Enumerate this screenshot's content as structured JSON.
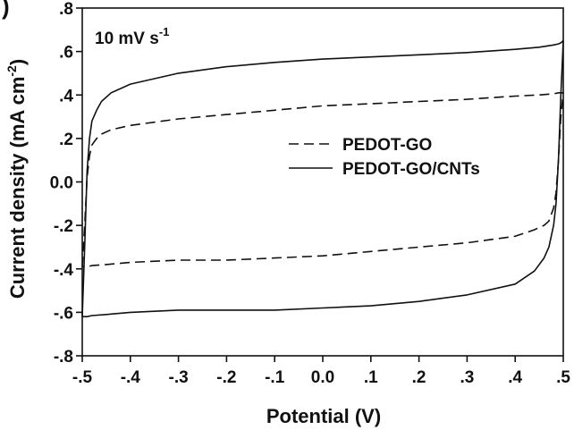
{
  "chart_data": {
    "type": "line",
    "panel_label": ")",
    "annotation": "10 mV s-1",
    "annotation_parts": {
      "base": "10 mV s",
      "sup": "-1"
    },
    "xlabel": "Potential (V)",
    "ylabel": "Current density (mA cm-2)",
    "ylabel_parts": {
      "base": "Current density (mA cm",
      "sup": "-2",
      "tail": ")"
    },
    "xlim": [
      -0.5,
      0.5
    ],
    "ylim": [
      -0.8,
      0.8
    ],
    "x_ticks": [
      -0.5,
      -0.4,
      -0.3,
      -0.2,
      -0.1,
      0.0,
      0.1,
      0.2,
      0.3,
      0.4,
      0.5
    ],
    "x_tick_labels": [
      "-.5",
      "-.4",
      "-.3",
      "-.2",
      "-.1",
      "0.0",
      ".1",
      ".2",
      ".3",
      ".4",
      ".5"
    ],
    "y_ticks": [
      -0.8,
      -0.6,
      -0.4,
      -0.2,
      0.0,
      0.2,
      0.4,
      0.6,
      0.8
    ],
    "y_tick_labels": [
      "-.8",
      "-.6",
      "-.4",
      "-.2",
      "0.0",
      ".2",
      ".4",
      ".6",
      ".8"
    ],
    "grid": false,
    "legend_position": "center-right",
    "series": [
      {
        "name": "PEDOT-GO",
        "style": "dashed",
        "color": "#111111",
        "x": [
          -0.5,
          -0.495,
          -0.49,
          -0.485,
          -0.48,
          -0.47,
          -0.46,
          -0.44,
          -0.4,
          -0.3,
          -0.2,
          -0.1,
          0.0,
          0.1,
          0.2,
          0.3,
          0.4,
          0.45,
          0.48,
          0.49,
          0.495,
          0.5,
          0.495,
          0.49,
          0.485,
          0.48,
          0.47,
          0.46,
          0.44,
          0.4,
          0.3,
          0.2,
          0.1,
          0.0,
          -0.1,
          -0.2,
          -0.3,
          -0.4,
          -0.45,
          -0.48,
          -0.49,
          -0.495,
          -0.5
        ],
        "y": [
          -0.39,
          -0.2,
          0.02,
          0.12,
          0.17,
          0.2,
          0.22,
          0.24,
          0.26,
          0.29,
          0.31,
          0.33,
          0.35,
          0.36,
          0.37,
          0.38,
          0.395,
          0.4,
          0.405,
          0.41,
          0.41,
          0.41,
          0.3,
          0.1,
          -0.05,
          -0.12,
          -0.18,
          -0.2,
          -0.22,
          -0.25,
          -0.28,
          -0.3,
          -0.32,
          -0.34,
          -0.35,
          -0.36,
          -0.36,
          -0.37,
          -0.38,
          -0.385,
          -0.39,
          -0.39,
          -0.39
        ]
      },
      {
        "name": "PEDOT-GO/CNTs",
        "style": "solid",
        "color": "#111111",
        "x": [
          -0.5,
          -0.495,
          -0.49,
          -0.485,
          -0.48,
          -0.47,
          -0.46,
          -0.44,
          -0.4,
          -0.3,
          -0.2,
          -0.1,
          0.0,
          0.1,
          0.2,
          0.3,
          0.4,
          0.45,
          0.48,
          0.49,
          0.495,
          0.5,
          0.495,
          0.49,
          0.485,
          0.48,
          0.47,
          0.46,
          0.44,
          0.4,
          0.3,
          0.2,
          0.1,
          0.0,
          -0.1,
          -0.2,
          -0.3,
          -0.4,
          -0.45,
          -0.48,
          -0.49,
          -0.495,
          -0.5
        ],
        "y": [
          -0.62,
          -0.3,
          0.05,
          0.2,
          0.28,
          0.33,
          0.37,
          0.41,
          0.45,
          0.5,
          0.53,
          0.55,
          0.565,
          0.575,
          0.585,
          0.595,
          0.61,
          0.62,
          0.63,
          0.635,
          0.64,
          0.65,
          0.4,
          0.1,
          -0.1,
          -0.2,
          -0.3,
          -0.35,
          -0.41,
          -0.47,
          -0.52,
          -0.55,
          -0.57,
          -0.58,
          -0.59,
          -0.59,
          -0.59,
          -0.6,
          -0.61,
          -0.615,
          -0.62,
          -0.62,
          -0.62
        ]
      }
    ]
  }
}
